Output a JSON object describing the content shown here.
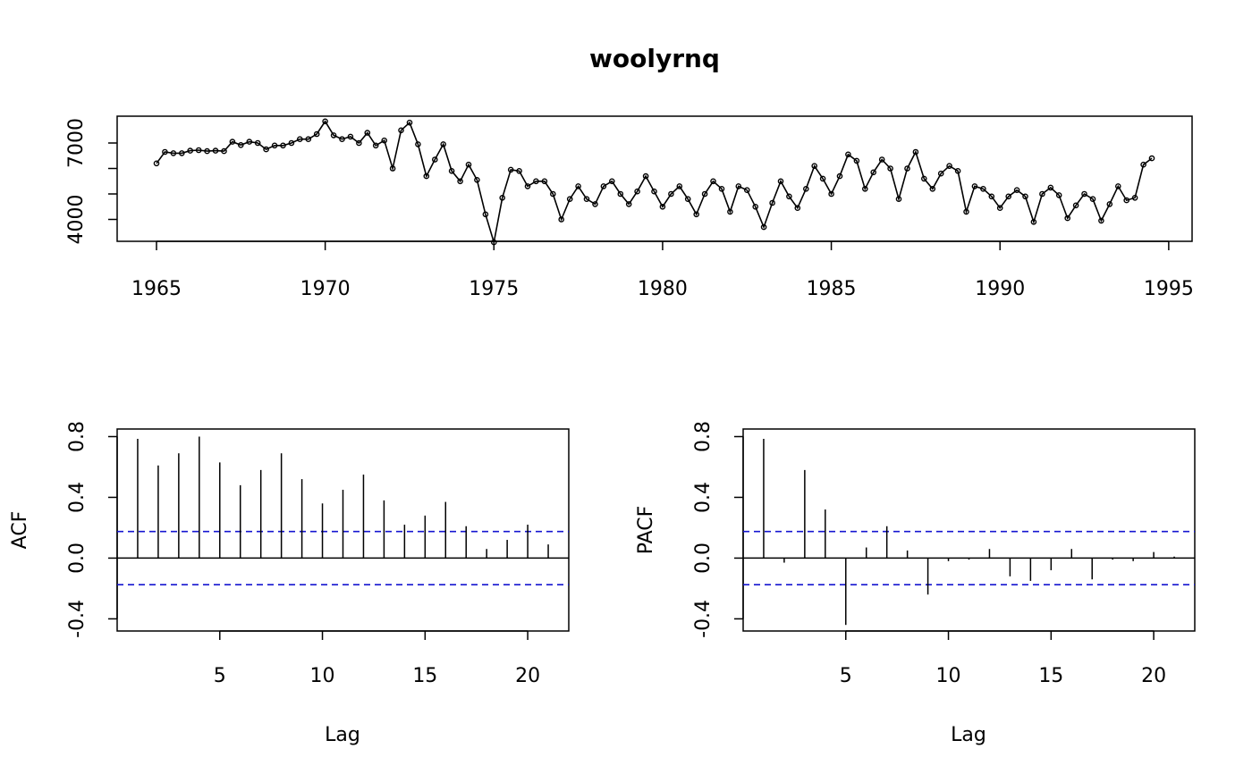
{
  "chart_data": [
    {
      "type": "line",
      "title": "woolyrnq",
      "xlabel": "",
      "ylabel": "",
      "start": 1965,
      "frequency": 4,
      "xlim": [
        1965,
        1994.5
      ],
      "ylim": [
        3000,
        7900
      ],
      "xticks": [
        1965,
        1970,
        1975,
        1980,
        1985,
        1990,
        1995
      ],
      "yticks": [
        4000,
        5000,
        6000,
        7000
      ],
      "ytick_labels": [
        "4000",
        "",
        "",
        "7000"
      ],
      "values": [
        6200,
        6650,
        6600,
        6600,
        6700,
        6720,
        6680,
        6700,
        6680,
        7050,
        6920,
        7050,
        7000,
        6750,
        6900,
        6900,
        7000,
        7150,
        7150,
        7350,
        7850,
        7300,
        7150,
        7250,
        7000,
        7400,
        6900,
        7100,
        6000,
        7500,
        7800,
        6950,
        5700,
        6350,
        6950,
        5900,
        5500,
        6150,
        5550,
        4200,
        3100,
        4850,
        5950,
        5900,
        5300,
        5500,
        5500,
        5000,
        4000,
        4800,
        5300,
        4800,
        4600,
        5300,
        5500,
        5000,
        4600,
        5100,
        5700,
        5100,
        4500,
        5000,
        5300,
        4800,
        4200,
        5000,
        5500,
        5200,
        4300,
        5300,
        5150,
        4500,
        3700,
        4650,
        5500,
        4900,
        4450,
        5200,
        6100,
        5600,
        5000,
        5700,
        6550,
        6300,
        5200,
        5850,
        6350,
        6000,
        4800,
        6000,
        6650,
        5600,
        5200,
        5800,
        6100,
        5900,
        4300,
        5300,
        5200,
        4900,
        4450,
        4900,
        5150,
        4900,
        3900,
        5000,
        5250,
        4950,
        4050,
        4550,
        5000,
        4800,
        3950,
        4600,
        5300,
        4750,
        4850,
        6150,
        6400
      ]
    },
    {
      "type": "bar",
      "subtype": "acf",
      "xlabel": "Lag",
      "ylabel": "ACF",
      "lags": [
        1,
        2,
        3,
        4,
        5,
        6,
        7,
        8,
        9,
        10,
        11,
        12,
        13,
        14,
        15,
        16,
        17,
        18,
        19,
        20,
        21
      ],
      "values": [
        0.785,
        0.61,
        0.69,
        0.8,
        0.63,
        0.48,
        0.58,
        0.69,
        0.52,
        0.36,
        0.45,
        0.55,
        0.38,
        0.22,
        0.28,
        0.37,
        0.21,
        0.06,
        0.12,
        0.22,
        0.09
      ],
      "ci": [
        0.175,
        -0.175
      ],
      "xlim": [
        0,
        22
      ],
      "ylim": [
        -0.48,
        0.85
      ],
      "xticks": [
        5,
        10,
        15,
        20
      ],
      "yticks": [
        -0.4,
        0.0,
        0.4,
        0.8
      ],
      "ytick_labels": [
        "-0.4",
        "0.0",
        "0.4",
        "0.8"
      ]
    },
    {
      "type": "bar",
      "subtype": "pacf",
      "xlabel": "Lag",
      "ylabel": "PACF",
      "lags": [
        1,
        2,
        3,
        4,
        5,
        6,
        7,
        8,
        9,
        10,
        11,
        12,
        13,
        14,
        15,
        16,
        17,
        18,
        19,
        20,
        21
      ],
      "values": [
        0.785,
        -0.03,
        0.58,
        0.32,
        -0.44,
        0.07,
        0.21,
        0.05,
        -0.24,
        -0.02,
        -0.01,
        0.06,
        -0.12,
        -0.15,
        -0.08,
        0.06,
        -0.14,
        -0.01,
        -0.02,
        0.04,
        0.01
      ],
      "ci": [
        0.175,
        -0.175
      ],
      "xlim": [
        0,
        22
      ],
      "ylim": [
        -0.48,
        0.85
      ],
      "xticks": [
        5,
        10,
        15,
        20
      ],
      "yticks": [
        -0.4,
        0.0,
        0.4,
        0.8
      ],
      "ytick_labels": [
        "-0.4",
        "0.0",
        "0.4",
        "0.8"
      ]
    }
  ]
}
